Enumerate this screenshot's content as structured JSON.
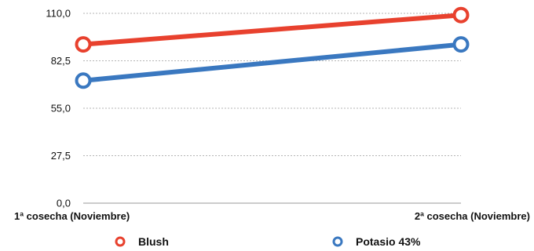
{
  "chart_data": {
    "type": "line",
    "categories": [
      "1ª cosecha (Noviembre)",
      "2ª cosecha (Noviembre)"
    ],
    "y_ticks": [
      "0,0",
      "27,5",
      "55,0",
      "82,5",
      "110,0"
    ],
    "ylim": [
      0,
      110
    ],
    "grid": true,
    "legend_position": "bottom",
    "series": [
      {
        "name": "Blush",
        "values": [
          92,
          109
        ],
        "color": "#e8412e"
      },
      {
        "name": "Potasio 43%",
        "values": [
          71,
          92
        ],
        "color": "#3a78c0"
      }
    ]
  }
}
